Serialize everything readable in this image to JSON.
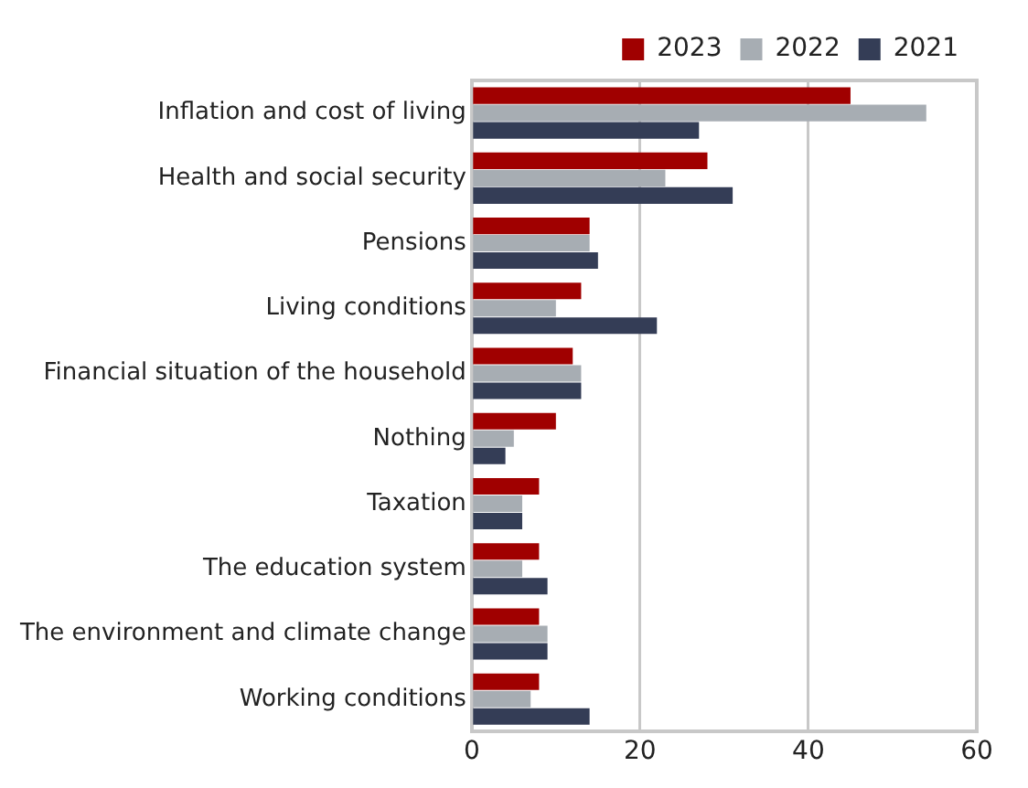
{
  "chart_data": {
    "type": "bar",
    "orientation": "horizontal",
    "categories": [
      "Inflation and cost of living",
      "Health and social security",
      "Pensions",
      "Living conditions",
      "Financial situation of the household",
      "Nothing",
      "Taxation",
      "The education system",
      "The environment and climate change",
      "Working conditions"
    ],
    "series": [
      {
        "name": "2023",
        "color": "#a00000",
        "values": [
          45,
          28,
          14,
          13,
          12,
          10,
          8,
          8,
          8,
          8
        ]
      },
      {
        "name": "2022",
        "color": "#a7adb3",
        "values": [
          54,
          23,
          14,
          10,
          13,
          5,
          6,
          6,
          9,
          7
        ]
      },
      {
        "name": "2021",
        "color": "#343d56",
        "values": [
          27,
          31,
          15,
          22,
          13,
          4,
          6,
          9,
          9,
          14
        ]
      }
    ],
    "xlim": [
      0,
      60
    ],
    "xticks": [
      0,
      20,
      40,
      60
    ],
    "grid": "x",
    "legend": "top"
  }
}
